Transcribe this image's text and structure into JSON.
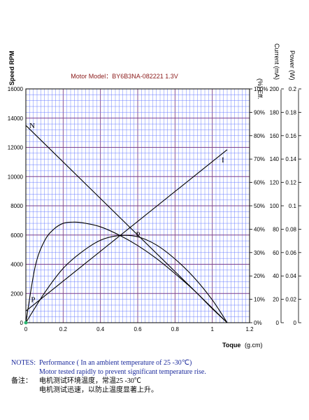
{
  "chart_data": {
    "type": "line",
    "title": "Motor Model：BY6B3NA-082221  1.3V",
    "xlabel": "Toque",
    "xunit": "(g.cm)",
    "xlim": [
      0,
      1.2
    ],
    "x_ticks": [
      "0",
      "0.2",
      "0.4",
      "0.6",
      "0.8",
      "1",
      "1.2"
    ],
    "grid": true,
    "axes": [
      {
        "id": "speed",
        "label": "Speed RPM",
        "lim": [
          0,
          16000
        ],
        "ticks": [
          "0",
          "2000",
          "4000",
          "6000",
          "8000",
          "10000",
          "12000",
          "14000",
          "16000"
        ]
      },
      {
        "id": "eff",
        "label": "(%) Eff.",
        "lim": [
          0,
          100
        ],
        "ticks": [
          "0%",
          "10%",
          "20%",
          "30%",
          "40%",
          "50%",
          "60%",
          "70%",
          "80%",
          "90%",
          "100%"
        ]
      },
      {
        "id": "current",
        "label": "Current (mA)",
        "lim": [
          0,
          200
        ],
        "ticks": [
          "0",
          "20",
          "40",
          "60",
          "80",
          "100",
          "120",
          "140",
          "160",
          "180",
          "200"
        ]
      },
      {
        "id": "power",
        "label": "Power (W)",
        "lim": [
          0,
          0.2
        ],
        "ticks": [
          "0",
          "0.02",
          "0.04",
          "0.06",
          "0.08",
          "0.1",
          "0.12",
          "0.14",
          "0.16",
          "0.18",
          "0.2"
        ]
      }
    ],
    "series": [
      {
        "name": "N",
        "axis": "speed",
        "x": [
          0,
          1.08
        ],
        "y": [
          13500,
          0
        ]
      },
      {
        "name": "I",
        "axis": "current",
        "x": [
          0,
          1.08
        ],
        "y": [
          10,
          148
        ]
      },
      {
        "name": "P",
        "axis": "power",
        "x": [
          0,
          0.1,
          0.2,
          0.3,
          0.4,
          0.5,
          0.6,
          0.7,
          0.8,
          0.9,
          1.0,
          1.08
        ],
        "y": [
          0,
          0.0255,
          0.0465,
          0.0605,
          0.0705,
          0.0745,
          0.0735,
          0.0665,
          0.0545,
          0.039,
          0.0195,
          0
        ]
      },
      {
        "name": "Eff",
        "axis": "eff",
        "x": [
          0,
          0.05,
          0.1,
          0.15,
          0.2,
          0.25,
          0.3,
          0.4,
          0.5,
          0.6,
          0.7,
          0.8,
          0.9,
          1.0,
          1.08
        ],
        "y": [
          0,
          24,
          35,
          40,
          42.5,
          43,
          42.8,
          41,
          37.5,
          33,
          27.5,
          21,
          14,
          6,
          0
        ]
      }
    ]
  },
  "notes": {
    "label": "NOTES:",
    "line1": "Performance ( In an ambient temperature of 25 -30℃)",
    "line2": "Motor tested rapidly to prevent significant temperature rise.",
    "cn_label": "备注：",
    "cn_line1": "电机测试环境温度，常温25 -30℃",
    "cn_line2": "电机测试迅速，以防止温度显著上升。"
  },
  "colors": {
    "grid_fine": "#5f74ff",
    "grid_major": "#7a3f8a",
    "curve": "#000000",
    "notes": "#1b2a9c",
    "title": "#8b1a1a"
  }
}
